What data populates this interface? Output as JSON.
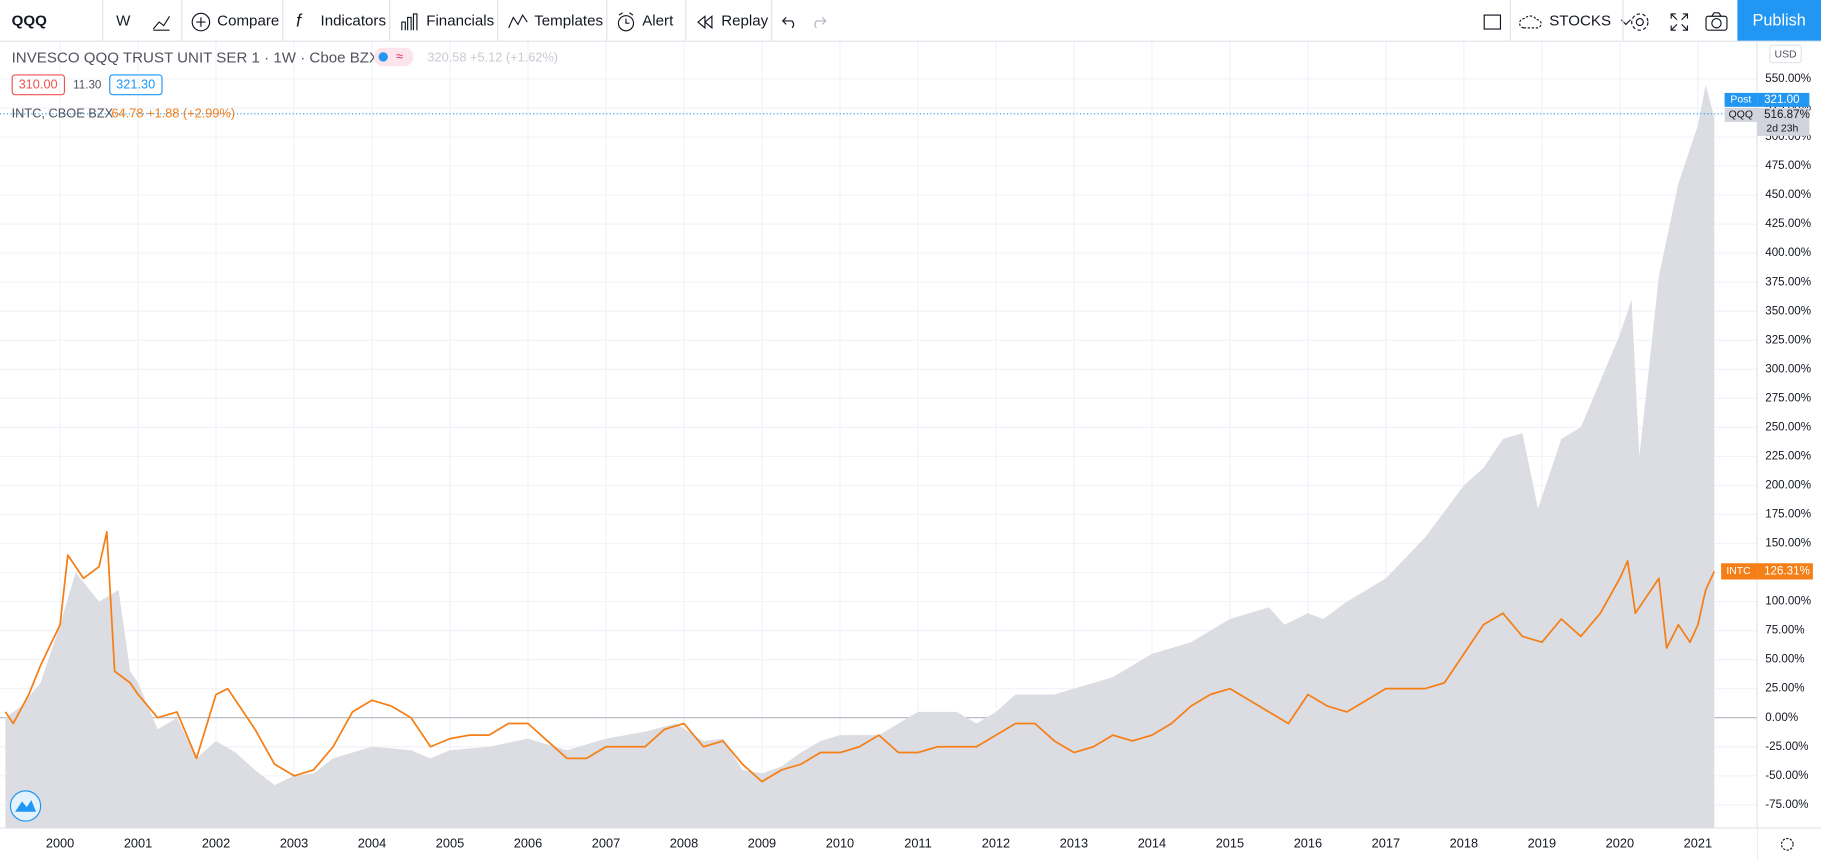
{
  "toolbar": {
    "symbol": "QQQ",
    "interval": "W",
    "items": [
      "Compare",
      "Indicators",
      "Financials",
      "Templates",
      "Alert",
      "Replay"
    ],
    "layout": "STOCKS",
    "publish": "Publish"
  },
  "legend": {
    "main_title": "INVESCO QQQ TRUST UNIT SER 1 · 1W · Cboe BZX",
    "main_quote": "320.58 +5.12 (+1.62%)",
    "bid": "310.00",
    "spread": "11.30",
    "ask": "321.30",
    "compare_title": "INTC, CBOE BZX",
    "compare_quote": "64.78 +1.88 (+2.99%)"
  },
  "price_axis": {
    "currency": "USD",
    "post_label": "Post",
    "post_price": "321.00",
    "qqq_value": "516.87%",
    "countdown": "2d 23h",
    "intc_value": "126.31%"
  },
  "chart_data": {
    "type": "line",
    "xlim": [
      1999.23,
      2021.76
    ],
    "xticks": [
      2000,
      2001,
      2002,
      2003,
      2004,
      2005,
      2006,
      2007,
      2008,
      2009,
      2010,
      2011,
      2012,
      2013,
      2014,
      2015,
      2016,
      2017,
      2018,
      2019,
      2020,
      2021
    ],
    "ylim": [
      -95,
      582
    ],
    "yticks": [
      {
        "value": -75,
        "label": "-75.00%"
      },
      {
        "value": -50,
        "label": "-50.00%"
      },
      {
        "value": -25,
        "label": "-25.00%"
      },
      {
        "value": 0,
        "label": "0.00%"
      },
      {
        "value": 25,
        "label": "25.00%"
      },
      {
        "value": 50,
        "label": "50.00%"
      },
      {
        "value": 75,
        "label": "75.00%"
      },
      {
        "value": 100,
        "label": "100.00%"
      },
      {
        "value": 125,
        "label": "125.00%"
      },
      {
        "value": 150,
        "label": "150.00%"
      },
      {
        "value": 175,
        "label": "175.00%"
      },
      {
        "value": 200,
        "label": "200.00%"
      },
      {
        "value": 225,
        "label": "225.00%"
      },
      {
        "value": 250,
        "label": "250.00%"
      },
      {
        "value": 275,
        "label": "275.00%"
      },
      {
        "value": 300,
        "label": "300.00%"
      },
      {
        "value": 325,
        "label": "325.00%"
      },
      {
        "value": 350,
        "label": "350.00%"
      },
      {
        "value": 375,
        "label": "375.00%"
      },
      {
        "value": 400,
        "label": "400.00%"
      },
      {
        "value": 425,
        "label": "425.00%"
      },
      {
        "value": 450,
        "label": "450.00%"
      },
      {
        "value": 475,
        "label": "475.00%"
      },
      {
        "value": 500,
        "label": "500.00%"
      },
      {
        "value": 525,
        "label": "525.00%"
      },
      {
        "value": 550,
        "label": "550.00%"
      }
    ],
    "grid": true,
    "series": [
      {
        "name": "QQQ",
        "color": "#dcdde2",
        "fill": true,
        "x": [
          1999.3,
          1999.5,
          1999.75,
          2000.0,
          2000.2,
          2000.5,
          2000.75,
          2000.9,
          2001.0,
          2001.25,
          2001.5,
          2001.75,
          2002.0,
          2002.25,
          2002.5,
          2002.75,
          2003.0,
          2003.25,
          2003.5,
          2003.75,
          2004.0,
          2004.5,
          2004.75,
          2005.0,
          2005.5,
          2006.0,
          2006.5,
          2007.0,
          2007.5,
          2007.9,
          2008.25,
          2008.5,
          2008.75,
          2009.0,
          2009.25,
          2009.5,
          2009.75,
          2010.0,
          2010.5,
          2010.75,
          2011.0,
          2011.5,
          2011.75,
          2012.0,
          2012.25,
          2012.75,
          2013.0,
          2013.5,
          2014.0,
          2014.5,
          2015.0,
          2015.5,
          2015.7,
          2016.0,
          2016.2,
          2016.5,
          2017.0,
          2017.5,
          2018.0,
          2018.25,
          2018.5,
          2018.75,
          2018.95,
          2019.25,
          2019.5,
          2020.0,
          2020.15,
          2020.25,
          2020.5,
          2020.75,
          2021.0,
          2021.1,
          2021.21
        ],
        "values": [
          0,
          10,
          30,
          80,
          125,
          100,
          110,
          40,
          30,
          -10,
          0,
          -35,
          -20,
          -30,
          -45,
          -58,
          -50,
          -48,
          -35,
          -30,
          -25,
          -28,
          -35,
          -28,
          -25,
          -18,
          -28,
          -18,
          -12,
          -5,
          -20,
          -18,
          -45,
          -48,
          -42,
          -30,
          -20,
          -15,
          -15,
          -5,
          5,
          5,
          -5,
          5,
          20,
          20,
          25,
          35,
          55,
          65,
          85,
          95,
          80,
          90,
          85,
          100,
          120,
          155,
          200,
          215,
          240,
          245,
          180,
          240,
          250,
          330,
          360,
          225,
          380,
          460,
          510,
          545,
          517
        ]
      },
      {
        "name": "INTC",
        "color": "#f57f17",
        "fill": false,
        "x": [
          1999.3,
          1999.4,
          1999.6,
          1999.75,
          2000.0,
          2000.1,
          2000.3,
          2000.5,
          2000.6,
          2000.7,
          2000.9,
          2001.0,
          2001.25,
          2001.5,
          2001.75,
          2002.0,
          2002.15,
          2002.3,
          2002.5,
          2002.75,
          2003.0,
          2003.25,
          2003.5,
          2003.75,
          2004.0,
          2004.25,
          2004.5,
          2004.75,
          2005.0,
          2005.25,
          2005.5,
          2005.75,
          2006.0,
          2006.25,
          2006.5,
          2006.75,
          2007.0,
          2007.25,
          2007.5,
          2007.75,
          2008.0,
          2008.25,
          2008.5,
          2008.75,
          2009.0,
          2009.25,
          2009.5,
          2009.75,
          2010.0,
          2010.25,
          2010.5,
          2010.75,
          2011.0,
          2011.25,
          2011.5,
          2011.75,
          2012.0,
          2012.25,
          2012.5,
          2012.75,
          2013.0,
          2013.25,
          2013.5,
          2013.75,
          2014.0,
          2014.25,
          2014.5,
          2014.75,
          2015.0,
          2015.25,
          2015.5,
          2015.75,
          2016.0,
          2016.25,
          2016.5,
          2016.75,
          2017.0,
          2017.25,
          2017.5,
          2017.75,
          2018.0,
          2018.25,
          2018.5,
          2018.75,
          2019.0,
          2019.25,
          2019.5,
          2019.75,
          2020.0,
          2020.1,
          2020.2,
          2020.5,
          2020.6,
          2020.75,
          2020.9,
          2021.0,
          2021.1,
          2021.21
        ],
        "values": [
          5,
          -5,
          20,
          45,
          80,
          140,
          120,
          130,
          160,
          40,
          30,
          20,
          0,
          5,
          -35,
          20,
          25,
          10,
          -10,
          -40,
          -50,
          -45,
          -25,
          5,
          15,
          10,
          0,
          -25,
          -18,
          -15,
          -15,
          -5,
          -5,
          -20,
          -35,
          -35,
          -25,
          -25,
          -25,
          -10,
          -5,
          -25,
          -20,
          -40,
          -55,
          -45,
          -40,
          -30,
          -30,
          -25,
          -15,
          -30,
          -30,
          -25,
          -25,
          -25,
          -15,
          -5,
          -5,
          -20,
          -30,
          -25,
          -15,
          -20,
          -15,
          -5,
          10,
          20,
          25,
          15,
          5,
          -5,
          20,
          10,
          5,
          15,
          25,
          25,
          25,
          30,
          55,
          80,
          90,
          70,
          65,
          85,
          70,
          90,
          120,
          135,
          90,
          120,
          60,
          80,
          65,
          80,
          110,
          126
        ]
      }
    ]
  }
}
